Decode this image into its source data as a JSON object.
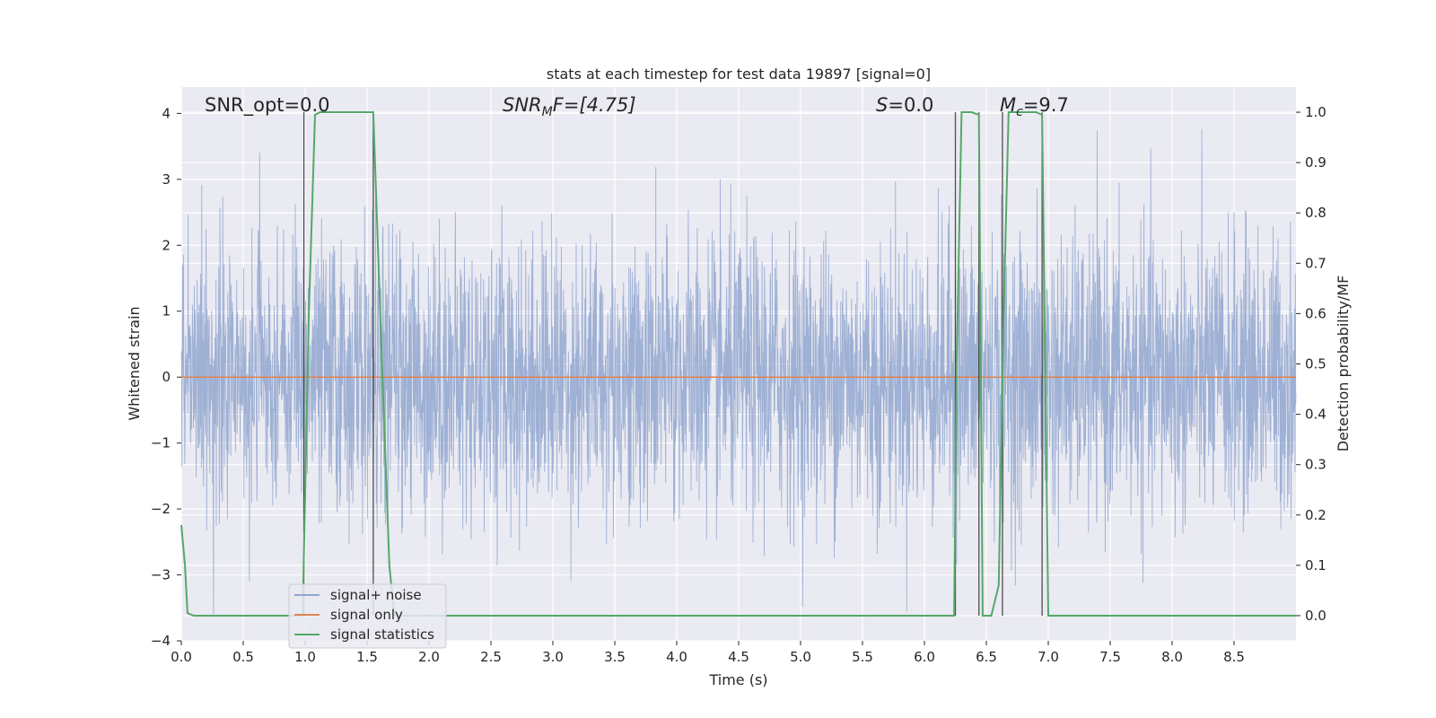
{
  "chart_data": {
    "type": "line",
    "title": "stats at each timestep for test data 19897 [signal=0]",
    "xlabel": "Time (s)",
    "ylabel": "Whitened strain",
    "y2label": "Detection probability/MF",
    "xlim": [
      0,
      9.0
    ],
    "ylim": [
      -4,
      4.4
    ],
    "y2lim": [
      -0.05,
      1.05
    ],
    "x_ticks": [
      "0.0",
      "0.5",
      "1.0",
      "1.5",
      "2.0",
      "2.5",
      "3.0",
      "3.5",
      "4.0",
      "4.5",
      "5.0",
      "5.5",
      "6.0",
      "6.5",
      "7.0",
      "7.5",
      "8.0",
      "8.5"
    ],
    "y_ticks": [
      "4",
      "3",
      "2",
      "1",
      "0",
      "−1",
      "−2",
      "−3",
      "−4"
    ],
    "y2_ticks": [
      "1.0",
      "0.9",
      "0.8",
      "0.7",
      "0.6",
      "0.5",
      "0.4",
      "0.3",
      "0.2",
      "0.1",
      "0.0"
    ],
    "grid": true,
    "legend_placement": "lower-left",
    "annotations": {
      "snr_opt": "SNR_opt=0.0",
      "snr_mf_main": "SNR",
      "snr_mf_sub": "M",
      "snr_mf_rest": "F=[4.75]",
      "s_main": "S",
      "s_rest": "=0.0",
      "mc_main": "M",
      "mc_sub": "c",
      "mc_rest": "=9.7"
    },
    "vertical_lines_x": [
      0.99,
      1.55,
      6.25,
      6.44,
      6.63,
      6.95
    ],
    "series": [
      {
        "name": "signal+ noise",
        "color": "#91a6cf",
        "axis": "left",
        "description_values": {
          "approx_range": [
            -3.6,
            4.0
          ]
        }
      },
      {
        "name": "signal only",
        "color": "#dd8452",
        "axis": "left",
        "x": [
          0,
          9.0
        ],
        "y": [
          0,
          0
        ]
      },
      {
        "name": "signal statistics",
        "color": "#55a868",
        "axis": "right",
        "x": [
          0.0,
          0.03,
          0.05,
          0.1,
          0.98,
          1.03,
          1.08,
          1.12,
          1.55,
          1.62,
          1.68,
          1.72,
          6.24,
          6.26,
          6.3,
          6.38,
          6.44,
          6.47,
          6.54,
          6.6,
          6.64,
          6.68,
          6.72,
          6.9,
          6.95,
          7.0,
          7.05,
          7.1,
          9.0
        ],
        "y": [
          0.18,
          0.1,
          0.005,
          0.0,
          0.0,
          0.6,
          0.995,
          1.0,
          1.0,
          0.5,
          0.1,
          0.0,
          0.0,
          0.5,
          1.0,
          1.0,
          0.995,
          0.0,
          0.0,
          0.06,
          0.6,
          1.0,
          1.0,
          1.0,
          0.995,
          0.0,
          0.0,
          0.0,
          0.0
        ]
      }
    ]
  },
  "colors": {
    "plot_bg": "#eaeaf2",
    "grid": "#ffffff",
    "vline": "#333333"
  }
}
